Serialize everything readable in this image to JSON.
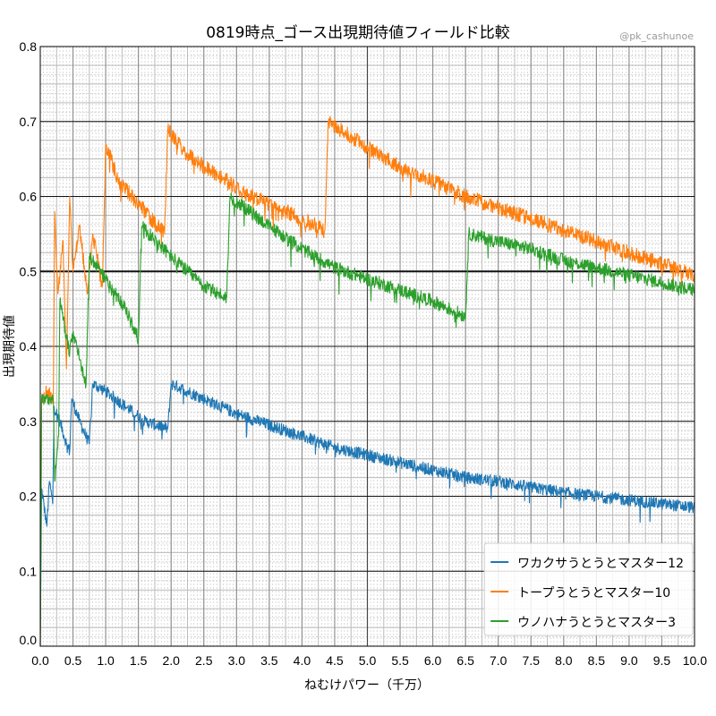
{
  "chart_data": {
    "type": "line",
    "title": "0819時点_ゴース出現期待値フィールド比較",
    "watermark": "@pk_cashunoe",
    "xlabel": "ねむけパワー（千万）",
    "ylabel": "出現期待値",
    "xlim": [
      0,
      10
    ],
    "ylim": [
      0,
      0.8
    ],
    "xticks": [
      "0.0",
      "0.5",
      "1.0",
      "1.5",
      "2.0",
      "2.5",
      "3.0",
      "3.5",
      "4.0",
      "4.5",
      "5.0",
      "5.5",
      "6.0",
      "6.5",
      "7.0",
      "7.5",
      "8.0",
      "8.5",
      "9.0",
      "9.5",
      "10.0"
    ],
    "yticks": [
      "0.0",
      "0.1",
      "0.2",
      "0.3",
      "0.4",
      "0.5",
      "0.6",
      "0.7",
      "0.8"
    ],
    "grid": true,
    "legend_position": "lower-right",
    "series": [
      {
        "name": "ワカクサうとうとマスター12",
        "color": "#1f77b4",
        "noise": 0.008,
        "points": [
          [
            0,
            0.0
          ],
          [
            0.02,
            0.21
          ],
          [
            0.1,
            0.16
          ],
          [
            0.14,
            0.22
          ],
          [
            0.19,
            0.19
          ],
          [
            0.21,
            0.32
          ],
          [
            0.3,
            0.3
          ],
          [
            0.4,
            0.27
          ],
          [
            0.45,
            0.26
          ],
          [
            0.48,
            0.33
          ],
          [
            0.6,
            0.3
          ],
          [
            0.75,
            0.27
          ],
          [
            0.8,
            0.35
          ],
          [
            1.0,
            0.34
          ],
          [
            1.3,
            0.32
          ],
          [
            1.6,
            0.3
          ],
          [
            1.95,
            0.29
          ],
          [
            2.0,
            0.35
          ],
          [
            2.5,
            0.33
          ],
          [
            3.0,
            0.31
          ],
          [
            3.5,
            0.295
          ],
          [
            4.0,
            0.28
          ],
          [
            4.5,
            0.265
          ],
          [
            5.0,
            0.255
          ],
          [
            5.5,
            0.245
          ],
          [
            6.0,
            0.235
          ],
          [
            6.5,
            0.225
          ],
          [
            7.0,
            0.22
          ],
          [
            7.5,
            0.212
          ],
          [
            8.0,
            0.205
          ],
          [
            8.5,
            0.2
          ],
          [
            9.0,
            0.195
          ],
          [
            9.5,
            0.19
          ],
          [
            10,
            0.185
          ]
        ]
      },
      {
        "name": "トープうとうとマスター10",
        "color": "#ff7f0e",
        "noise": 0.01,
        "points": [
          [
            0,
            0.0
          ],
          [
            0.02,
            0.33
          ],
          [
            0.1,
            0.34
          ],
          [
            0.2,
            0.33
          ],
          [
            0.22,
            0.58
          ],
          [
            0.27,
            0.47
          ],
          [
            0.35,
            0.54
          ],
          [
            0.4,
            0.37
          ],
          [
            0.45,
            0.6
          ],
          [
            0.5,
            0.5
          ],
          [
            0.6,
            0.56
          ],
          [
            0.72,
            0.47
          ],
          [
            0.8,
            0.55
          ],
          [
            0.95,
            0.48
          ],
          [
            1.0,
            0.67
          ],
          [
            1.2,
            0.62
          ],
          [
            1.5,
            0.59
          ],
          [
            1.9,
            0.55
          ],
          [
            1.95,
            0.69
          ],
          [
            2.2,
            0.66
          ],
          [
            2.5,
            0.64
          ],
          [
            2.8,
            0.625
          ],
          [
            3.0,
            0.61
          ],
          [
            3.5,
            0.59
          ],
          [
            4.0,
            0.57
          ],
          [
            4.35,
            0.555
          ],
          [
            4.4,
            0.7
          ],
          [
            5.0,
            0.665
          ],
          [
            5.5,
            0.64
          ],
          [
            6.0,
            0.62
          ],
          [
            6.5,
            0.6
          ],
          [
            7.0,
            0.585
          ],
          [
            7.5,
            0.57
          ],
          [
            8.0,
            0.555
          ],
          [
            8.5,
            0.54
          ],
          [
            9.0,
            0.525
          ],
          [
            9.5,
            0.51
          ],
          [
            10,
            0.495
          ]
        ]
      },
      {
        "name": "ウノハナうとうとマスター3",
        "color": "#2ca02c",
        "noise": 0.009,
        "points": [
          [
            0,
            0.0
          ],
          [
            0.02,
            0.33
          ],
          [
            0.2,
            0.33
          ],
          [
            0.22,
            0.22
          ],
          [
            0.28,
            0.28
          ],
          [
            0.3,
            0.46
          ],
          [
            0.45,
            0.39
          ],
          [
            0.5,
            0.42
          ],
          [
            0.7,
            0.35
          ],
          [
            0.75,
            0.52
          ],
          [
            1.0,
            0.49
          ],
          [
            1.3,
            0.45
          ],
          [
            1.5,
            0.41
          ],
          [
            1.55,
            0.56
          ],
          [
            2.0,
            0.52
          ],
          [
            2.5,
            0.48
          ],
          [
            2.85,
            0.465
          ],
          [
            2.9,
            0.6
          ],
          [
            3.5,
            0.56
          ],
          [
            4.0,
            0.53
          ],
          [
            4.5,
            0.505
          ],
          [
            5.0,
            0.49
          ],
          [
            5.5,
            0.475
          ],
          [
            6.0,
            0.46
          ],
          [
            6.5,
            0.44
          ],
          [
            6.55,
            0.55
          ],
          [
            7.0,
            0.54
          ],
          [
            7.5,
            0.53
          ],
          [
            8.0,
            0.515
          ],
          [
            8.5,
            0.505
          ],
          [
            9.0,
            0.495
          ],
          [
            9.5,
            0.485
          ],
          [
            10,
            0.475
          ]
        ]
      }
    ]
  }
}
